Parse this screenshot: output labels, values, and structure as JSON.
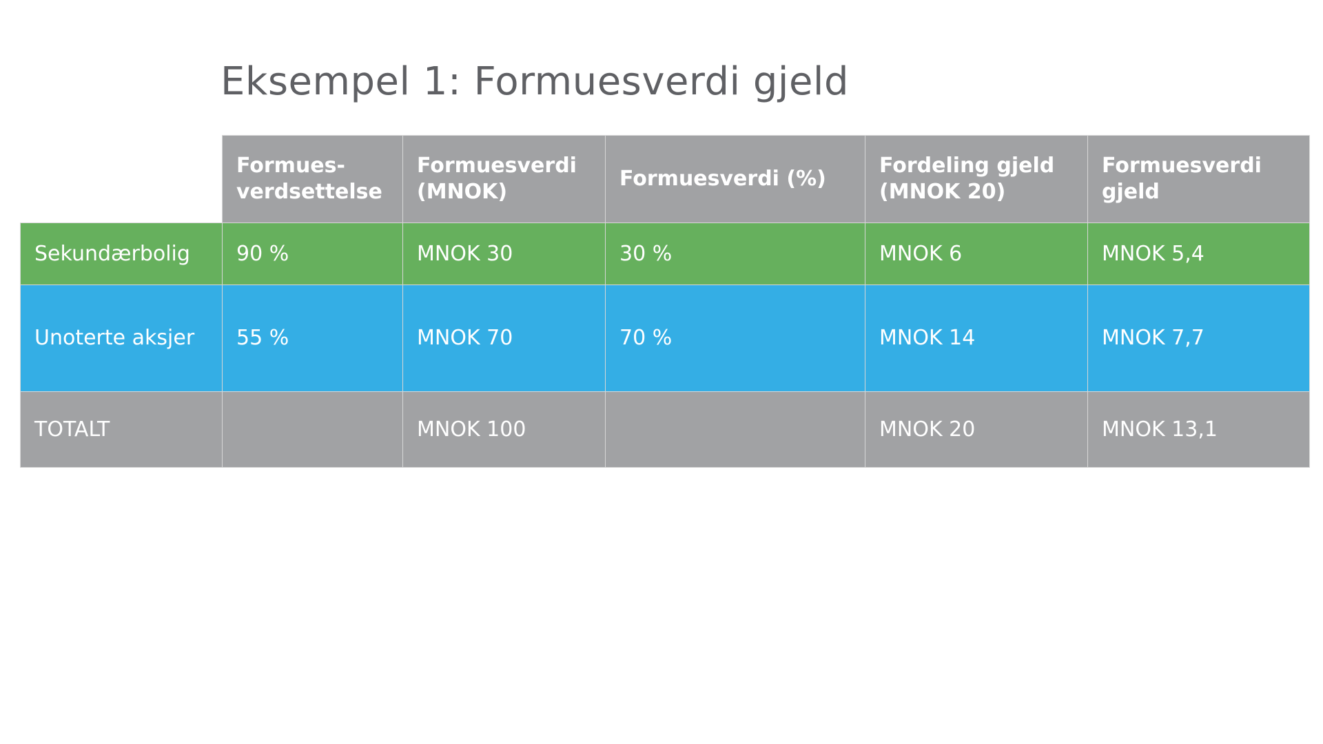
{
  "slide": {
    "title": "Eksempel 1: Formuesverdi gjeld"
  },
  "colors": {
    "header_bg": "#a1a2a4",
    "row1_bg": "#66b05d",
    "row2_bg": "#34aee5",
    "total_bg": "#a1a2a4",
    "title_text": "#5f6064"
  },
  "table": {
    "headers": [
      "",
      "Formues-\nverdsettelse",
      "Formuesverdi\n(MNOK)",
      "Formuesverdi (%)",
      "Fordeling gjeld\n(MNOK 20)",
      "Formuesverdi\ngjeld"
    ],
    "rows": [
      {
        "label": "Sekundærbolig",
        "verdsettelse": "90 %",
        "formuesverdi_mnok": "MNOK 30",
        "formuesverdi_pct": "30 %",
        "fordeling_gjeld": "MNOK 6",
        "formuesverdi_gjeld": "MNOK 5,4"
      },
      {
        "label": "Unoterte aksjer",
        "verdsettelse": "55 %",
        "formuesverdi_mnok": "MNOK 70",
        "formuesverdi_pct": "70 %",
        "fordeling_gjeld": "MNOK 14",
        "formuesverdi_gjeld": "MNOK 7,7"
      }
    ],
    "total": {
      "label": "TOTALT",
      "verdsettelse": "",
      "formuesverdi_mnok": "MNOK 100",
      "formuesverdi_pct": "",
      "fordeling_gjeld": "MNOK 20",
      "formuesverdi_gjeld": "MNOK 13,1"
    }
  }
}
